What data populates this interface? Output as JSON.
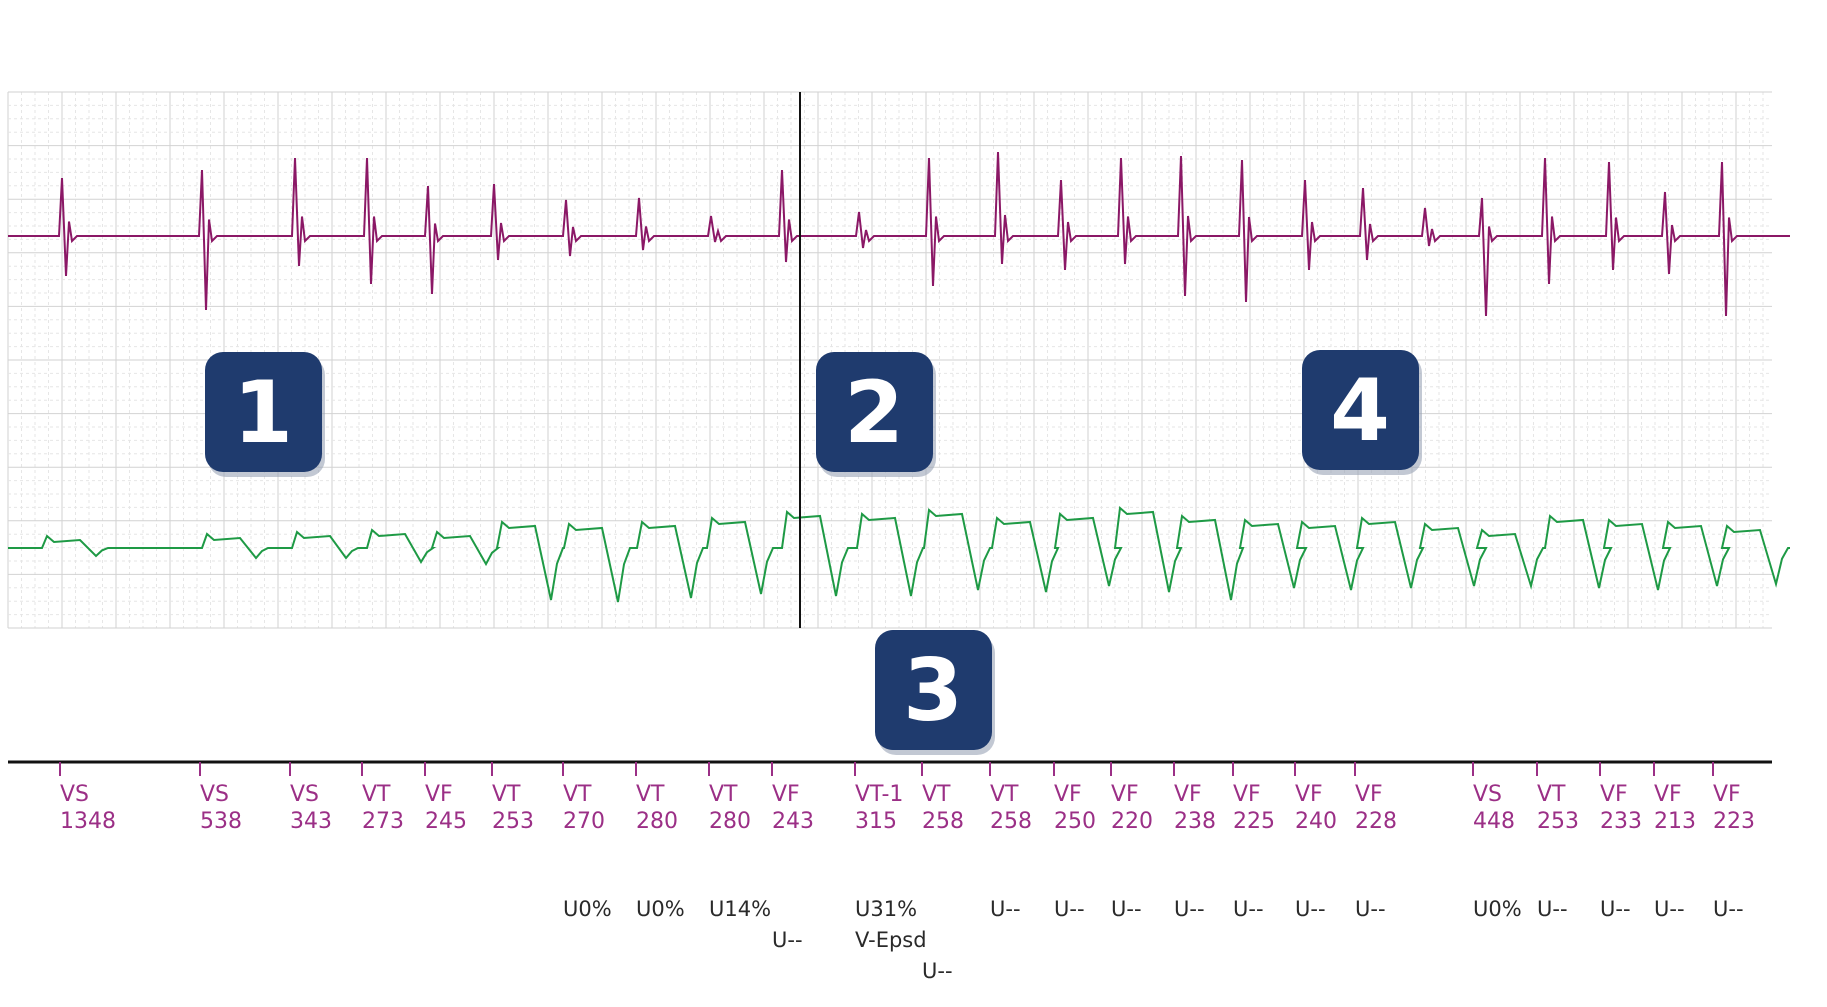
{
  "colors": {
    "egm_top": "#8b1866",
    "egm_bottom": "#1e9a45",
    "marker": "#9b2f86",
    "info": "#2a2a2a",
    "badge": "#1f3b6e",
    "grid_minor": "#e6e6e6",
    "grid_major": "#d2d2d2",
    "divider": "#111111"
  },
  "badges": [
    {
      "label": "1"
    },
    {
      "label": "2"
    },
    {
      "label": "3"
    },
    {
      "label": "4"
    }
  ],
  "markers": [
    {
      "type": "VS",
      "interval": "1348"
    },
    {
      "type": "VS",
      "interval": "538"
    },
    {
      "type": "VS",
      "interval": "343"
    },
    {
      "type": "VT",
      "interval": "273"
    },
    {
      "type": "VF",
      "interval": "245"
    },
    {
      "type": "VT",
      "interval": "253"
    },
    {
      "type": "VT",
      "interval": "270",
      "notes": [
        "U0%"
      ]
    },
    {
      "type": "VT",
      "interval": "280",
      "notes": [
        "U0%"
      ]
    },
    {
      "type": "VT",
      "interval": "280",
      "notes": [
        "U14%"
      ]
    },
    {
      "type": "VF",
      "interval": "243",
      "notes": [
        "U--"
      ]
    },
    {
      "type": "VT-1",
      "interval": "315",
      "notes": [
        "U31%",
        "V-Epsd"
      ]
    },
    {
      "type": "VT",
      "interval": "258",
      "notes": [
        "U--"
      ]
    },
    {
      "type": "VT",
      "interval": "258",
      "notes": [
        "U--"
      ]
    },
    {
      "type": "VF",
      "interval": "250",
      "notes": [
        "U--"
      ]
    },
    {
      "type": "VF",
      "interval": "220",
      "notes": [
        "U--"
      ]
    },
    {
      "type": "VF",
      "interval": "238",
      "notes": [
        "U--"
      ]
    },
    {
      "type": "VF",
      "interval": "225",
      "notes": [
        "U--"
      ]
    },
    {
      "type": "VF",
      "interval": "240",
      "notes": [
        "U--"
      ]
    },
    {
      "type": "VF",
      "interval": "228",
      "notes": [
        "U--"
      ]
    },
    {
      "type": "VS",
      "interval": "448",
      "notes": [
        "U0%"
      ]
    },
    {
      "type": "VT",
      "interval": "253",
      "notes": [
        "U--"
      ]
    },
    {
      "type": "VF",
      "interval": "233",
      "notes": [
        "U--"
      ]
    },
    {
      "type": "VF",
      "interval": "213",
      "notes": [
        "U--"
      ]
    },
    {
      "type": "VF",
      "interval": "223",
      "notes": [
        "U--"
      ]
    }
  ]
}
